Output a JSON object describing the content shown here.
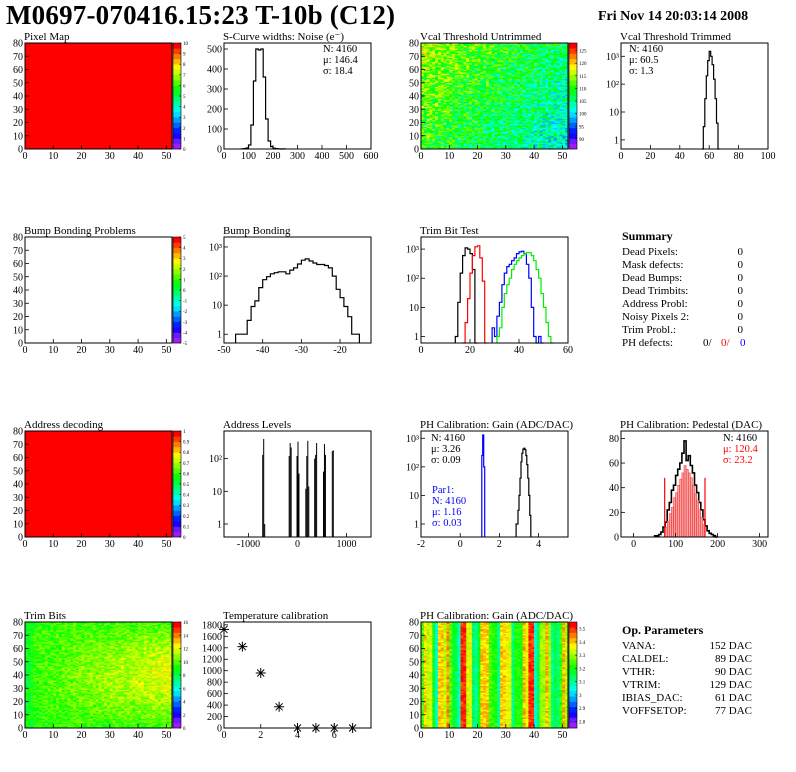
{
  "header": {
    "title": "M0697-070416.15:23 T-10b (C12)",
    "date": "Fri Nov 14 20:03:14 2008"
  },
  "chart_data": [
    {
      "title": "Pixel Map",
      "type": "heatmap",
      "pattern": "uniform",
      "xlim": [
        0,
        52
      ],
      "ylim": [
        0,
        80
      ],
      "xticks": [
        0,
        10,
        20,
        30,
        40,
        50
      ],
      "yticks": [
        0,
        10,
        20,
        30,
        40,
        50,
        60,
        70,
        80
      ],
      "zlim": [
        0,
        10
      ],
      "zticks": [
        0,
        1,
        2,
        3,
        4,
        5,
        6,
        7,
        8,
        9,
        10
      ],
      "uniform_value": 10
    },
    {
      "title": "S-Curve widths: Noise (e⁻)",
      "type": "histogram",
      "xlim": [
        0,
        600
      ],
      "ylim": [
        0,
        530
      ],
      "log": false,
      "xticks": [
        0,
        100,
        200,
        300,
        400,
        500,
        600
      ],
      "yticks": [
        0,
        100,
        200,
        300,
        400,
        500
      ],
      "series": [
        {
          "color": "#000000",
          "bin_start": 70,
          "bin_width": 10,
          "values": [
            1,
            2,
            5,
            20,
            120,
            340,
            500,
            495,
            500,
            360,
            150,
            40,
            12,
            4,
            2,
            1,
            0,
            1
          ]
        }
      ],
      "stats": [
        {
          "text": "N: 4160",
          "color": "#000000"
        },
        {
          "text": "μ: 146.4",
          "color": "#000000"
        },
        {
          "text": "σ: 18.4",
          "color": "#000000"
        }
      ]
    },
    {
      "title": "Vcal Threshold Untrimmed",
      "type": "heatmap",
      "pattern": "vcal",
      "xlim": [
        0,
        52
      ],
      "ylim": [
        0,
        80
      ],
      "xticks": [
        0,
        10,
        20,
        30,
        40,
        50
      ],
      "yticks": [
        0,
        10,
        20,
        30,
        40,
        50,
        60,
        70,
        80
      ],
      "zlim": [
        86,
        128
      ],
      "zticks": [
        90,
        95,
        100,
        105,
        110,
        115,
        120,
        125
      ]
    },
    {
      "title": "Vcal Threshold Trimmed",
      "type": "histogram",
      "xlim": [
        0,
        100
      ],
      "ylim": [
        0.47,
        3000
      ],
      "log": true,
      "xticks": [
        0,
        20,
        40,
        60,
        80,
        100
      ],
      "yticks": [
        1,
        10,
        100,
        1000
      ],
      "ytick_labels": [
        "1",
        "10",
        "10²",
        "10³"
      ],
      "series": [
        {
          "color": "#000000",
          "bin_start": 55,
          "bin_width": 1,
          "values": [
            0,
            3,
            30,
            200,
            700,
            1500,
            1000,
            500,
            150,
            30,
            4,
            0
          ]
        }
      ],
      "stats": [
        {
          "text": "N: 4160",
          "color": "#000000"
        },
        {
          "text": "μ: 60.5",
          "color": "#000000"
        },
        {
          "text": "σ:  1.3",
          "color": "#000000"
        }
      ]
    },
    {
      "title": "Bump Bonding Problems",
      "type": "heatmap",
      "pattern": "empty",
      "xlim": [
        0,
        52
      ],
      "ylim": [
        0,
        80
      ],
      "xticks": [
        0,
        10,
        20,
        30,
        40,
        50
      ],
      "yticks": [
        0,
        10,
        20,
        30,
        40,
        50,
        60,
        70,
        80
      ],
      "zlim": [
        -5,
        5
      ],
      "zticks": [
        -5,
        -4,
        -3,
        -2,
        -1,
        0,
        1,
        2,
        3,
        4,
        5
      ]
    },
    {
      "title": "Bump Bonding",
      "type": "histogram",
      "xlim": [
        -50,
        -12
      ],
      "ylim": [
        0.5,
        2200
      ],
      "log": true,
      "xticks": [
        -50,
        -40,
        -30,
        -20
      ],
      "yticks": [
        1,
        10,
        100,
        1000
      ],
      "ytick_labels": [
        "1",
        "10",
        "10²",
        "10³"
      ],
      "series": [
        {
          "color": "#000000",
          "bin_start": -47,
          "bin_width": 1,
          "values": [
            1,
            1,
            1,
            3,
            9,
            14,
            40,
            75,
            95,
            120,
            130,
            140,
            140,
            120,
            160,
            190,
            260,
            350,
            390,
            330,
            280,
            250,
            250,
            230,
            190,
            100,
            35,
            18,
            9,
            4,
            1,
            1
          ]
        }
      ]
    },
    {
      "title": "Trim Bit Test",
      "type": "histogram",
      "xlim": [
        0,
        60
      ],
      "ylim": [
        0.6,
        2600
      ],
      "log": true,
      "xticks": [
        0,
        20,
        40,
        60
      ],
      "yticks": [
        1,
        10,
        100,
        1000
      ],
      "ytick_labels": [
        "1",
        "10",
        "10²",
        "10³"
      ],
      "series": [
        {
          "color": "#000000",
          "bin_start": 14,
          "bin_width": 1,
          "values": [
            1,
            15,
            150,
            600,
            1100,
            1000,
            700,
            200,
            0
          ]
        },
        {
          "color": "#ff0000",
          "bin_start": 17,
          "bin_width": 1,
          "values": [
            0,
            3,
            20,
            150,
            600,
            1200,
            1300,
            500,
            80,
            0
          ]
        },
        {
          "color": "#0000ff",
          "bin_start": 29,
          "bin_width": 1,
          "values": [
            2,
            1,
            5,
            15,
            60,
            150,
            250,
            300,
            400,
            500,
            700,
            800,
            850,
            700,
            300,
            100,
            10,
            1,
            0,
            1,
            0
          ]
        },
        {
          "color": "#00ee00",
          "bin_start": 31,
          "bin_width": 1,
          "values": [
            1,
            2,
            10,
            30,
            60,
            100,
            200,
            300,
            400,
            500,
            600,
            700,
            750,
            750,
            600,
            400,
            200,
            100,
            30,
            10,
            3,
            1,
            0
          ]
        }
      ]
    },
    {
      "title": "Address decoding",
      "type": "heatmap",
      "pattern": "uniform",
      "xlim": [
        0,
        52
      ],
      "ylim": [
        0,
        80
      ],
      "xticks": [
        0,
        10,
        20,
        30,
        40,
        50
      ],
      "yticks": [
        0,
        10,
        20,
        30,
        40,
        50,
        60,
        70,
        80
      ],
      "zlim": [
        0,
        1
      ],
      "zticks": [
        0,
        0.1,
        0.2,
        0.3,
        0.4,
        0.5,
        0.6,
        0.7,
        0.8,
        0.9,
        1
      ],
      "uniform_value": 1
    },
    {
      "title": "Address Levels",
      "type": "bars",
      "xlim": [
        -1500,
        1500
      ],
      "ylim": [
        0.4,
        700
      ],
      "log": true,
      "xticks": [
        -1000,
        0,
        1000
      ],
      "yticks": [
        1,
        10,
        100
      ],
      "ytick_labels": [
        "1",
        "10",
        "10²"
      ],
      "bin_width": 20,
      "bars": [
        [
          -720,
          130
        ],
        [
          -700,
          400
        ],
        [
          -680,
          1
        ],
        [
          -180,
          120
        ],
        [
          -160,
          300
        ],
        [
          -140,
          220
        ],
        [
          -20,
          120
        ],
        [
          0,
          330
        ],
        [
          20,
          35
        ],
        [
          160,
          12
        ],
        [
          180,
          120
        ],
        [
          200,
          350
        ],
        [
          220,
          14
        ],
        [
          340,
          100
        ],
        [
          360,
          130
        ],
        [
          380,
          300
        ],
        [
          520,
          40
        ],
        [
          540,
          280
        ],
        [
          560,
          130
        ],
        [
          700,
          170
        ],
        [
          720,
          180
        ]
      ]
    },
    {
      "title": "PH Calibration: Gain (ADC/DAC)",
      "type": "histogram",
      "xlim": [
        -2,
        5.5
      ],
      "ylim": [
        0.35,
        1800
      ],
      "log": true,
      "xticks": [
        -2,
        0,
        2,
        4
      ],
      "yticks": [
        1,
        10,
        100,
        1000
      ],
      "ytick_labels": [
        "1",
        "10",
        "10²",
        "10³"
      ],
      "series": [
        {
          "color": "#000000",
          "bin_start": 2.85,
          "bin_width": 0.05,
          "values": [
            1,
            1,
            3,
            10,
            40,
            150,
            300,
            420,
            450,
            400,
            250,
            120,
            40,
            10,
            2
          ]
        },
        {
          "color": "#0000ff",
          "bin_start": 1.1,
          "bin_width": 0.05,
          "values": [
            250,
            1300,
            100
          ]
        }
      ],
      "stats": [
        {
          "text": "N: 4160",
          "color": "#000000"
        },
        {
          "text": "μ: 3.26",
          "color": "#000000"
        },
        {
          "text": "σ: 0.09",
          "color": "#000000"
        }
      ],
      "stats2": [
        {
          "text": "Par1:",
          "color": "#0000ff"
        },
        {
          "text": "N: 4160",
          "color": "#0000ff"
        },
        {
          "text": "μ: 1.16",
          "color": "#0000ff"
        },
        {
          "text": "σ: 0.03",
          "color": "#0000ff"
        }
      ]
    },
    {
      "title": "PH Calibration: Pedestal (DAC)",
      "type": "histogram",
      "xlim": [
        -30,
        320
      ],
      "ylim": [
        0,
        86
      ],
      "log": false,
      "xticks": [
        0,
        100,
        200,
        300
      ],
      "yticks": [
        0,
        20,
        40,
        60,
        80
      ],
      "series": [
        {
          "color": "#000000",
          "bin_start": 50,
          "bin_width": 5,
          "values": [
            1,
            1,
            2,
            4,
            8,
            12,
            22,
            28,
            38,
            42,
            50,
            55,
            60,
            68,
            78,
            62,
            66,
            58,
            52,
            42,
            36,
            28,
            22,
            14,
            9,
            5,
            3,
            2,
            1,
            0
          ]
        },
        {
          "color": "#ff0000",
          "fill": true,
          "bin_start": 75,
          "bin_width": 5,
          "values": [
            8,
            13,
            19,
            24,
            32,
            36,
            42,
            47,
            52,
            58,
            55,
            52,
            48,
            42,
            35,
            30,
            22,
            16,
            10
          ]
        }
      ],
      "markers": [
        {
          "x": 74,
          "y": 48,
          "color": "#ff0000"
        },
        {
          "x": 170,
          "y": 48,
          "color": "#ff0000"
        }
      ],
      "stats": [
        {
          "text": "N: 4160",
          "color": "#000000"
        },
        {
          "text": "μ: 120.4",
          "color": "#ff0000"
        },
        {
          "text": "σ: 23.2",
          "color": "#ff0000"
        }
      ]
    },
    {
      "title": "Trim Bits",
      "type": "heatmap",
      "pattern": "trimbits",
      "xlim": [
        0,
        52
      ],
      "ylim": [
        0,
        80
      ],
      "xticks": [
        0,
        10,
        20,
        30,
        40,
        50
      ],
      "yticks": [
        0,
        10,
        20,
        30,
        40,
        50,
        60,
        70,
        80
      ],
      "zlim": [
        0,
        16
      ],
      "zticks": [
        0,
        2,
        4,
        6,
        8,
        10,
        12,
        14,
        16
      ]
    },
    {
      "title": "Temperature calibration",
      "type": "scatter",
      "xlim": [
        0,
        8
      ],
      "ylim": [
        0,
        1850
      ],
      "xticks": [
        0,
        2,
        4,
        6
      ],
      "yticks": [
        0,
        200,
        400,
        600,
        800,
        1000,
        1200,
        1400,
        1600,
        1800
      ],
      "points": [
        [
          0,
          1720
        ],
        [
          1,
          1420
        ],
        [
          2,
          960
        ],
        [
          3,
          370
        ],
        [
          4,
          0
        ],
        [
          5,
          0
        ],
        [
          6,
          0
        ],
        [
          7,
          0
        ]
      ]
    },
    {
      "title": "PH Calibration: Gain (ADC/DAC)",
      "type": "heatmap",
      "pattern": "phgain",
      "xlim": [
        0,
        52
      ],
      "ylim": [
        0,
        80
      ],
      "xticks": [
        0,
        10,
        20,
        30,
        40,
        50
      ],
      "yticks": [
        0,
        10,
        20,
        30,
        40,
        50,
        60,
        70,
        80
      ],
      "zlim": [
        2.75,
        3.55
      ],
      "zticks": [
        2.8,
        2.9,
        3,
        3.1,
        3.2,
        3.3,
        3.4,
        3.5
      ]
    }
  ],
  "summary": {
    "title": "Summary",
    "rows": [
      {
        "label": "Dead Pixels:",
        "value": "0"
      },
      {
        "label": "Mask defects:",
        "value": "0"
      },
      {
        "label": "Dead Bumps:",
        "value": "0"
      },
      {
        "label": "Dead Trimbits:",
        "value": "0"
      },
      {
        "label": "Address Probl:",
        "value": "0"
      },
      {
        "label": "Noisy Pixels 2:",
        "value": "0"
      },
      {
        "label": "Trim Probl.:",
        "value": "0"
      }
    ],
    "ph_defects": {
      "label": "PH defects:",
      "v1": "0/",
      "v2": "0/",
      "v3": "0",
      "c1": "#000000",
      "c2": "#ff0000",
      "c3": "#0000ff"
    }
  },
  "op_parameters": {
    "title": "Op. Parameters",
    "rows": [
      {
        "label": "VANA:",
        "value": "152 DAC"
      },
      {
        "label": "CALDEL:",
        "value": "89 DAC"
      },
      {
        "label": "VTHR:",
        "value": "90 DAC"
      },
      {
        "label": "VTRIM:",
        "value": "129 DAC"
      },
      {
        "label": "IBIAS_DAC:",
        "value": "61 DAC"
      },
      {
        "label": "VOFFSETOP:",
        "value": "77 DAC"
      }
    ]
  }
}
